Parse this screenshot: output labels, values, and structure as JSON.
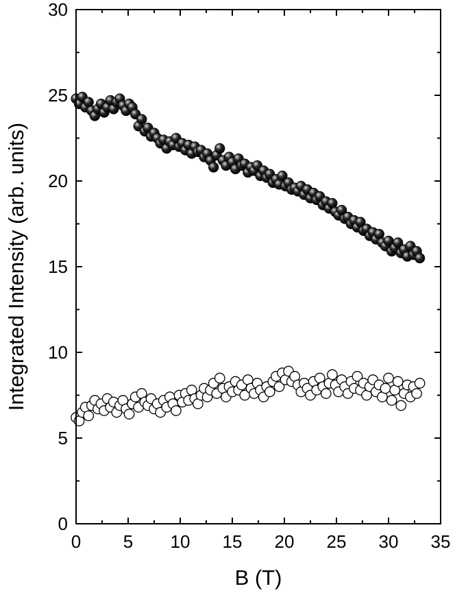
{
  "chart_data": {
    "type": "scatter",
    "xlabel": "B (T)",
    "ylabel": "Integrated Intensity (arb. units)",
    "xlim": [
      0,
      35
    ],
    "ylim": [
      0,
      30
    ],
    "x_ticks": [
      0,
      5,
      10,
      15,
      20,
      25,
      30,
      35
    ],
    "y_ticks": [
      0,
      5,
      10,
      15,
      20,
      25,
      30
    ],
    "grid": false,
    "legend": "none",
    "colors": {
      "filled_marker": "#2a2a2a",
      "open_marker": "#ffffff",
      "marker_edge": "#000000"
    },
    "series": [
      {
        "marker": "filled-circle",
        "x": [
          0.0,
          0.3,
          0.6,
          0.9,
          1.2,
          1.5,
          1.8,
          2.1,
          2.4,
          2.7,
          3.0,
          3.3,
          3.6,
          3.9,
          4.2,
          4.5,
          4.8,
          5.1,
          5.4,
          5.7,
          6.0,
          6.3,
          6.6,
          6.9,
          7.2,
          7.5,
          7.8,
          8.1,
          8.4,
          8.7,
          9.0,
          9.3,
          9.6,
          9.9,
          10.2,
          10.5,
          10.8,
          11.1,
          11.4,
          11.7,
          12.0,
          12.3,
          12.6,
          12.9,
          13.2,
          13.5,
          13.8,
          14.1,
          14.4,
          14.7,
          15.0,
          15.3,
          15.6,
          15.9,
          16.2,
          16.5,
          16.8,
          17.1,
          17.4,
          17.7,
          18.0,
          18.3,
          18.6,
          18.9,
          19.2,
          19.5,
          19.8,
          20.1,
          20.4,
          20.7,
          21.0,
          21.3,
          21.6,
          21.9,
          22.2,
          22.5,
          22.8,
          23.1,
          23.4,
          23.7,
          24.0,
          24.3,
          24.6,
          24.9,
          25.2,
          25.5,
          25.8,
          26.1,
          26.4,
          26.7,
          27.0,
          27.3,
          27.6,
          27.9,
          28.2,
          28.5,
          28.8,
          29.1,
          29.4,
          29.7,
          30.0,
          30.3,
          30.6,
          30.9,
          31.2,
          31.5,
          31.8,
          32.1,
          32.4,
          32.7,
          33.0
        ],
        "y": [
          24.8,
          24.5,
          24.9,
          24.3,
          24.6,
          24.1,
          23.8,
          24.2,
          24.5,
          24.0,
          24.3,
          24.7,
          24.2,
          24.6,
          24.8,
          24.4,
          24.1,
          24.5,
          24.3,
          23.9,
          23.2,
          23.6,
          22.9,
          23.1,
          22.6,
          22.8,
          22.5,
          22.2,
          22.4,
          21.9,
          22.3,
          22.1,
          22.5,
          22.0,
          22.2,
          21.8,
          22.1,
          21.6,
          22.0,
          21.7,
          21.8,
          21.4,
          21.6,
          21.2,
          20.8,
          21.5,
          21.9,
          21.2,
          20.9,
          21.4,
          21.1,
          20.7,
          21.3,
          20.9,
          21.0,
          20.5,
          20.8,
          20.6,
          20.9,
          20.3,
          20.6,
          20.2,
          20.4,
          19.9,
          20.1,
          19.8,
          20.3,
          19.7,
          19.9,
          19.5,
          19.6,
          19.4,
          19.7,
          19.2,
          19.5,
          19.0,
          19.3,
          18.9,
          19.1,
          18.6,
          18.8,
          18.4,
          18.7,
          18.2,
          18.0,
          18.3,
          17.8,
          17.9,
          17.5,
          17.7,
          17.3,
          17.6,
          17.1,
          17.2,
          16.8,
          17.0,
          16.6,
          16.9,
          16.4,
          16.2,
          16.5,
          15.9,
          16.1,
          16.4,
          15.8,
          16.0,
          15.6,
          16.2,
          15.7,
          15.9,
          15.5
        ]
      },
      {
        "marker": "open-circle",
        "x": [
          0.0,
          0.3,
          0.6,
          0.9,
          1.2,
          1.5,
          1.8,
          2.1,
          2.4,
          2.7,
          3.0,
          3.3,
          3.6,
          3.9,
          4.2,
          4.5,
          4.8,
          5.1,
          5.4,
          5.7,
          6.0,
          6.3,
          6.6,
          6.9,
          7.2,
          7.5,
          7.8,
          8.1,
          8.4,
          8.7,
          9.0,
          9.3,
          9.6,
          9.9,
          10.2,
          10.5,
          10.8,
          11.1,
          11.4,
          11.7,
          12.0,
          12.3,
          12.6,
          12.9,
          13.2,
          13.5,
          13.8,
          14.1,
          14.4,
          14.7,
          15.0,
          15.3,
          15.6,
          15.9,
          16.2,
          16.5,
          16.8,
          17.1,
          17.4,
          17.7,
          18.0,
          18.3,
          18.6,
          18.9,
          19.2,
          19.5,
          19.8,
          20.1,
          20.4,
          20.7,
          21.0,
          21.3,
          21.6,
          21.9,
          22.2,
          22.5,
          22.8,
          23.1,
          23.4,
          23.7,
          24.0,
          24.3,
          24.6,
          24.9,
          25.2,
          25.5,
          25.8,
          26.1,
          26.4,
          26.7,
          27.0,
          27.3,
          27.6,
          27.9,
          28.2,
          28.5,
          28.8,
          29.1,
          29.4,
          29.7,
          30.0,
          30.3,
          30.6,
          30.9,
          31.2,
          31.5,
          31.8,
          32.1,
          32.4,
          32.7,
          33.0
        ],
        "y": [
          6.2,
          6.0,
          6.5,
          6.8,
          6.3,
          6.9,
          7.2,
          6.7,
          7.0,
          6.6,
          7.3,
          6.8,
          7.1,
          6.5,
          6.9,
          7.2,
          6.7,
          6.4,
          7.0,
          7.4,
          6.8,
          7.6,
          7.1,
          6.9,
          7.3,
          6.7,
          7.0,
          6.5,
          7.2,
          6.8,
          7.4,
          7.0,
          6.6,
          7.5,
          7.1,
          7.6,
          7.2,
          7.8,
          7.3,
          7.0,
          7.5,
          7.9,
          7.4,
          7.8,
          8.2,
          7.6,
          8.5,
          7.9,
          7.4,
          8.0,
          7.7,
          8.3,
          7.8,
          8.1,
          7.5,
          8.4,
          7.9,
          7.6,
          8.2,
          7.8,
          7.4,
          8.0,
          7.7,
          8.3,
          8.6,
          8.0,
          8.8,
          8.4,
          8.9,
          8.3,
          8.6,
          8.1,
          7.7,
          8.2,
          7.9,
          7.5,
          8.3,
          7.8,
          8.5,
          8.0,
          7.6,
          8.2,
          8.7,
          8.1,
          7.7,
          8.4,
          8.0,
          7.6,
          8.3,
          7.9,
          8.6,
          7.8,
          8.2,
          7.5,
          8.0,
          8.4,
          7.7,
          8.1,
          7.4,
          7.9,
          8.5,
          7.2,
          7.8,
          8.3,
          6.9,
          7.6,
          8.1,
          7.4,
          8.0,
          7.6,
          8.2
        ]
      }
    ]
  }
}
